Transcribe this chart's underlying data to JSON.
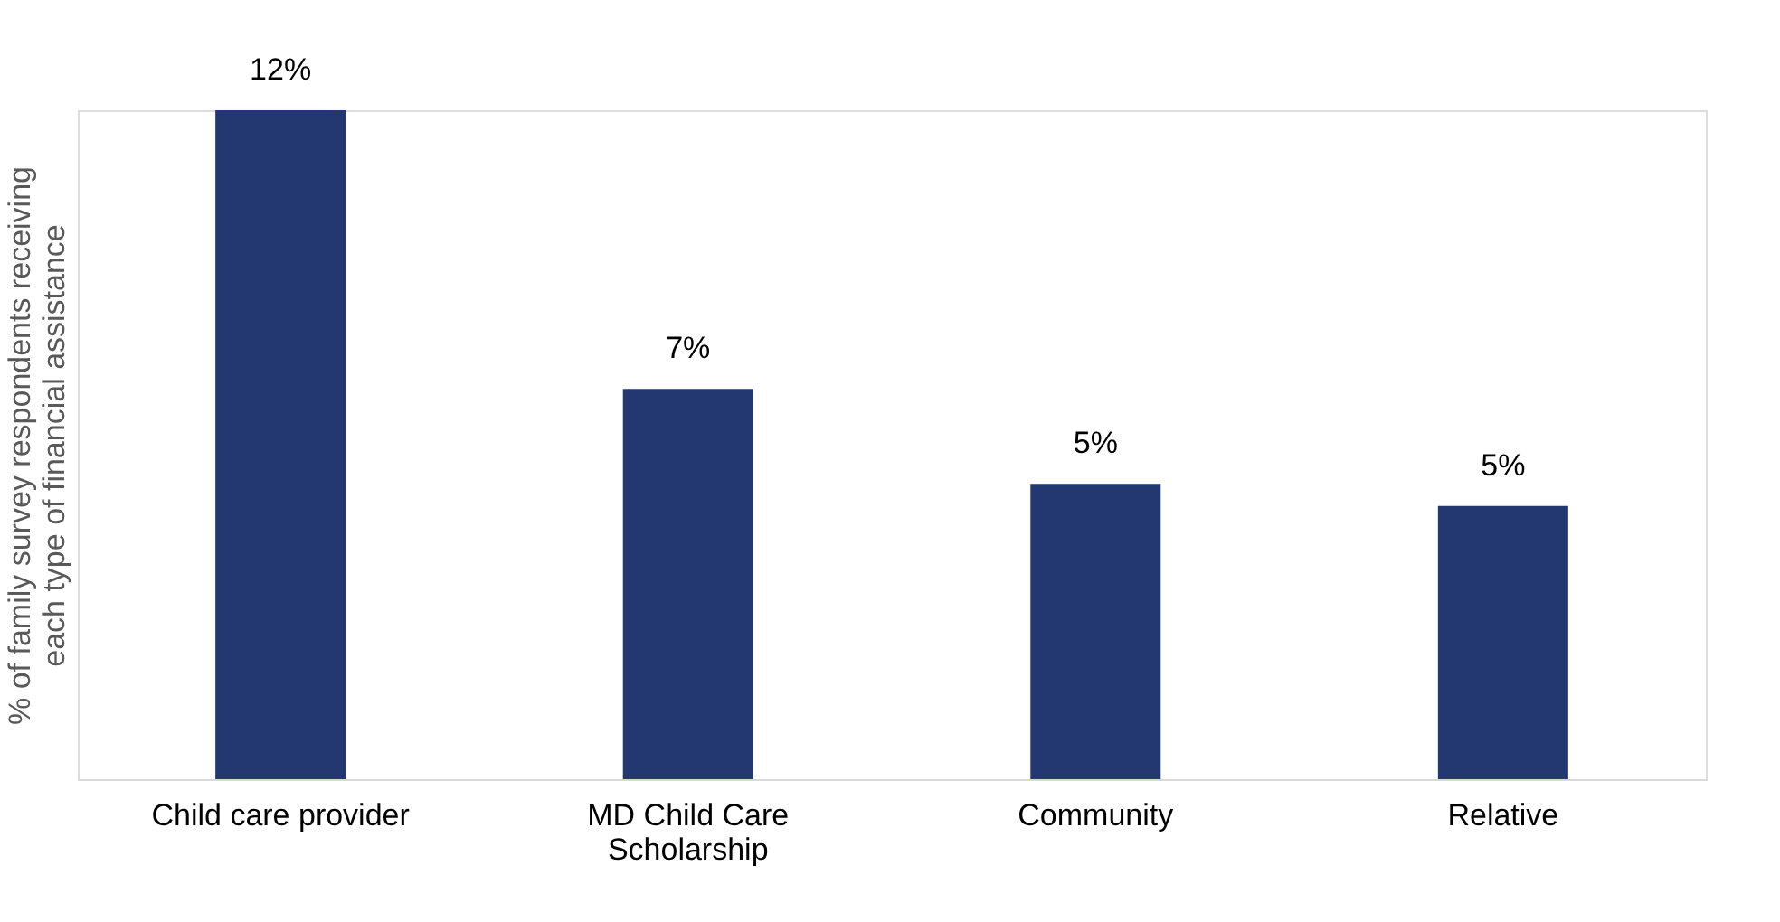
{
  "chart_data": {
    "type": "bar",
    "ylabel": "% of family survey respondents receiving each type of financial assistance",
    "categories": [
      "Child care provider",
      "MD Child Care Scholarship",
      "Community",
      "Relative"
    ],
    "values": [
      12,
      7.0,
      5.3,
      4.9
    ],
    "value_labels": [
      "12%",
      "7%",
      "5%",
      "5%"
    ],
    "color": "#233871",
    "grid": false
  }
}
